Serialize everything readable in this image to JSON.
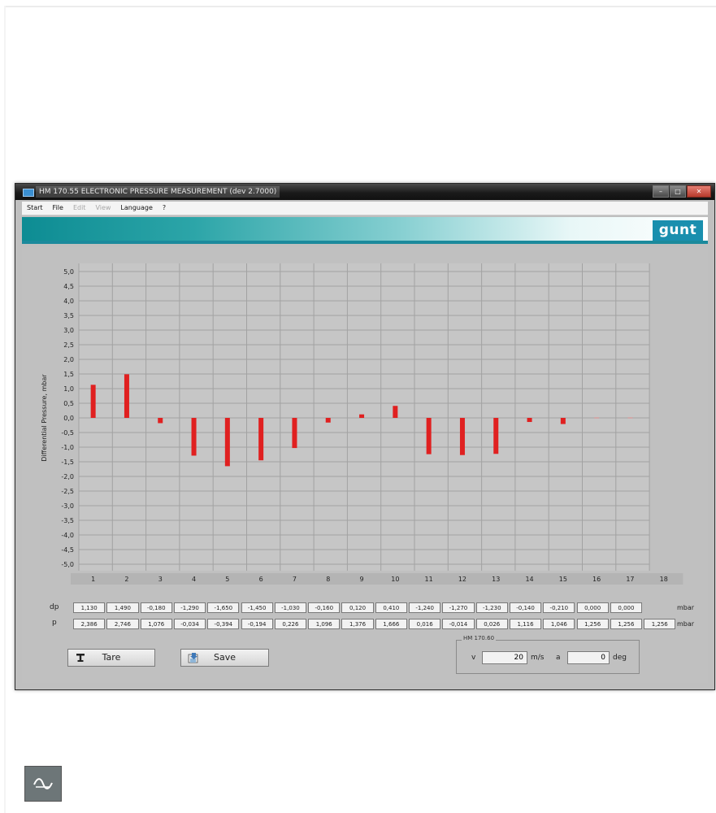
{
  "window": {
    "title": "HM 170.55 ELECTRONIC PRESSURE MEASUREMENT (dev 2.7000) ",
    "close_icon": "close-icon",
    "min_icon": "minimize-icon",
    "max_icon": "maximize-icon"
  },
  "menu": [
    "Start",
    "File",
    "Edit",
    "View",
    "Language",
    "?"
  ],
  "menu_disabled": [
    false,
    false,
    true,
    true,
    false,
    false
  ],
  "logo": "gunt",
  "colors": {
    "bar": "#e02020",
    "banner": "#14939a",
    "background": "#c0c0c0"
  },
  "chart_data": {
    "type": "bar",
    "ylabel": "Differential Pressure, mbar",
    "ylim": [
      -5.0,
      5.0
    ],
    "yticks": [
      "5,0",
      "4,5",
      "4,0",
      "3,5",
      "3,0",
      "2,5",
      "2,0",
      "1,5",
      "1,0",
      "0,5",
      "0,0",
      "-0,5",
      "-1,0",
      "-1,5",
      "-2,0",
      "-2,5",
      "-3,0",
      "-3,5",
      "-4,0",
      "-4,5",
      "-5,0"
    ],
    "categories": [
      "1",
      "2",
      "3",
      "4",
      "5",
      "6",
      "7",
      "8",
      "9",
      "10",
      "11",
      "12",
      "13",
      "14",
      "15",
      "16",
      "17",
      "18"
    ],
    "values": [
      1.13,
      1.49,
      -0.18,
      -1.29,
      -1.65,
      -1.45,
      -1.03,
      -0.16,
      0.12,
      0.41,
      -1.24,
      -1.27,
      -1.23,
      -0.14,
      -0.21,
      0.0,
      0.0,
      null
    ],
    "grid": true
  },
  "rows": {
    "dp_label": "dp",
    "p_label": "p",
    "unit": "mbar",
    "dp": [
      "1,130",
      "1,490",
      "-0,180",
      "-1,290",
      "-1,650",
      "-1,450",
      "-1,030",
      "-0,160",
      "0,120",
      "0,410",
      "-1,240",
      "-1,270",
      "-1,230",
      "-0,140",
      "-0,210",
      "0,000",
      "0,000"
    ],
    "p": [
      "2,386",
      "2,746",
      "1,076",
      "-0,034",
      "-0,394",
      "-0,194",
      "0,226",
      "1,096",
      "1,376",
      "1,666",
      "0,016",
      "-0,014",
      "0,026",
      "1,116",
      "1,046",
      "1,256",
      "1,256",
      "1,256"
    ]
  },
  "buttons": {
    "tare": "Tare",
    "save": "Save"
  },
  "group": {
    "title": "HM 170.60",
    "v_label": "v",
    "v_value": "20",
    "v_unit": "m/s",
    "a_label": "a",
    "a_value": "0",
    "a_unit": "deg"
  },
  "footer_icon": "waveform-icon"
}
